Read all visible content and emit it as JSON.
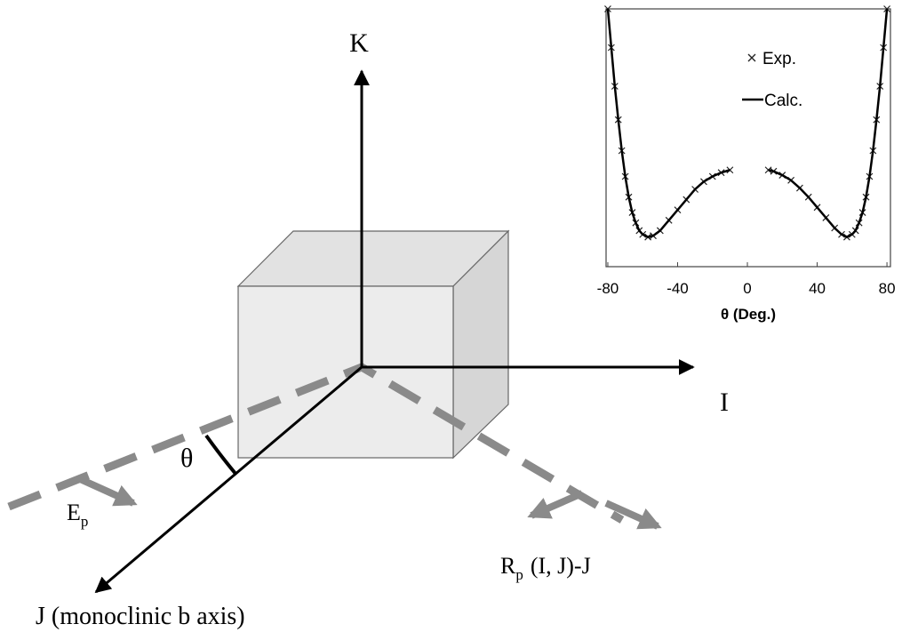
{
  "diagram": {
    "axes": {
      "K": "K",
      "I": "I",
      "J": "J (monoclinic b axis)"
    },
    "angle": "θ",
    "incident": {
      "main": "E",
      "sub": "p"
    },
    "reflected": {
      "main": "R",
      "sub": "p",
      "rest": "(I, J)-J"
    }
  },
  "chart_data": {
    "type": "line",
    "x": [
      -80,
      -78,
      -76,
      -74,
      -72,
      -70,
      -68,
      -66,
      -64,
      -62,
      -60,
      -57,
      -54,
      -50,
      -45,
      -40,
      -35,
      -30,
      -25,
      -20,
      -15,
      -10,
      0,
      12,
      15,
      20,
      25,
      30,
      35,
      40,
      45,
      50,
      54,
      57,
      60,
      62,
      64,
      66,
      68,
      70,
      72,
      74,
      76,
      78,
      80
    ],
    "series": [
      {
        "name": "Exp.",
        "color": "#222222",
        "marker": "x",
        "values": [
          1.0,
          0.85,
          0.7,
          0.57,
          0.45,
          0.35,
          0.27,
          0.21,
          0.17,
          0.14,
          0.125,
          0.115,
          0.12,
          0.14,
          0.18,
          0.22,
          0.26,
          0.3,
          0.33,
          0.35,
          0.365,
          0.375,
          null,
          0.375,
          0.37,
          0.355,
          0.335,
          0.305,
          0.27,
          0.23,
          0.19,
          0.15,
          0.125,
          0.115,
          0.125,
          0.14,
          0.17,
          0.21,
          0.27,
          0.35,
          0.45,
          0.57,
          0.7,
          0.85,
          1.0
        ]
      },
      {
        "name": "Calc.",
        "color": "#000000",
        "marker": "line",
        "values": [
          1.0,
          0.85,
          0.7,
          0.57,
          0.45,
          0.35,
          0.27,
          0.21,
          0.17,
          0.14,
          0.125,
          0.115,
          0.12,
          0.14,
          0.18,
          0.22,
          0.26,
          0.3,
          0.33,
          0.35,
          0.365,
          0.375,
          null,
          0.375,
          0.37,
          0.355,
          0.335,
          0.305,
          0.27,
          0.23,
          0.19,
          0.15,
          0.125,
          0.115,
          0.125,
          0.14,
          0.17,
          0.21,
          0.27,
          0.35,
          0.45,
          0.57,
          0.7,
          0.85,
          1.0
        ]
      }
    ],
    "xlabel": "θ (Deg.)",
    "xlim": [
      -81,
      82
    ],
    "xticks": [
      -80,
      -40,
      0,
      40,
      80
    ],
    "ylim": [
      0,
      1
    ]
  }
}
